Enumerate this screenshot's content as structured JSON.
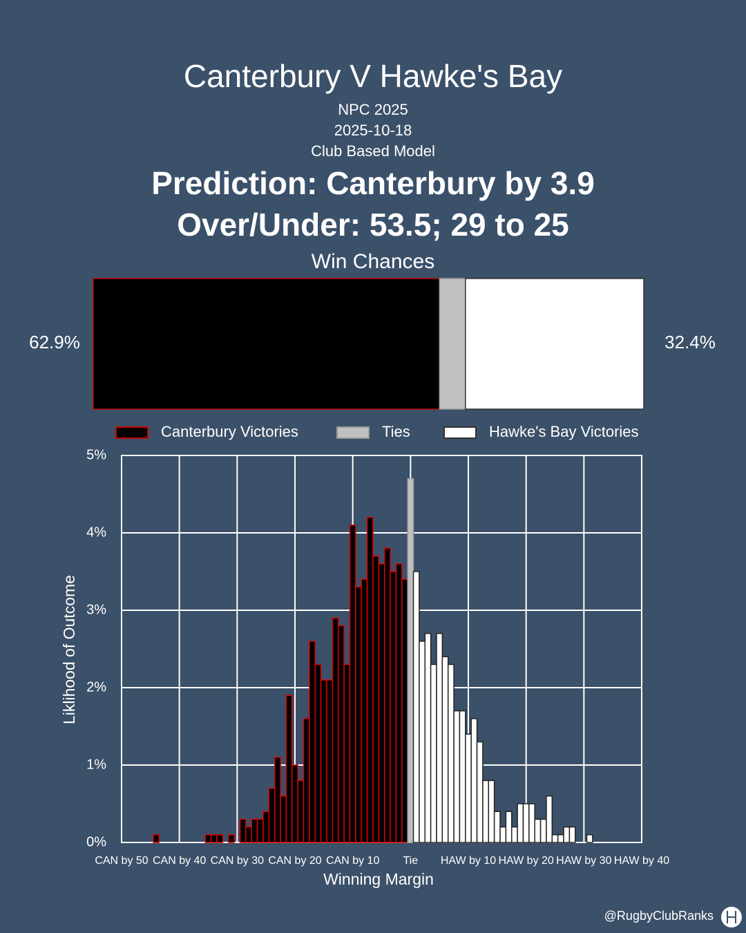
{
  "header": {
    "title": "Canterbury V Hawke's Bay",
    "lines": [
      "NPC 2025",
      "2025-10-18",
      "Club Based Model"
    ],
    "prediction": [
      "Prediction: Canterbury by 3.9",
      "Over/Under: 53.5; 29 to 25"
    ]
  },
  "chart_data": [
    {
      "type": "stacked-bar",
      "title": "Win Chances",
      "xlim": [
        0,
        100
      ],
      "series": [
        {
          "name": "Canterbury Victories",
          "color": "#000000",
          "edge": "#cc0000",
          "values": [
            62.9
          ],
          "value_labels": [
            "62.9%"
          ]
        },
        {
          "name": "Ties",
          "color": "#c0c0c0",
          "edge": "#9a9a9a",
          "values": [
            4.7
          ]
        },
        {
          "name": "Hawke's Bay Victories",
          "color": "#ffffff",
          "edge": "#333333",
          "values": [
            32.4
          ],
          "value_labels": [
            "32.4%"
          ]
        }
      ]
    },
    {
      "type": "histogram",
      "x_label": "Winning Margin",
      "y_label": "Liklihood of Outcome",
      "xlim": [
        -50,
        40
      ],
      "ylim": [
        0,
        5
      ],
      "grid": true,
      "xticks": [
        {
          "value": -50,
          "label": "CAN by 50"
        },
        {
          "value": -40,
          "label": "CAN by 40"
        },
        {
          "value": -30,
          "label": "CAN by 30"
        },
        {
          "value": -20,
          "label": "CAN by 20"
        },
        {
          "value": -10,
          "label": "CAN by 10"
        },
        {
          "value": 0,
          "label": "Tie"
        },
        {
          "value": 10,
          "label": "HAW by 10"
        },
        {
          "value": 20,
          "label": "HAW by 20"
        },
        {
          "value": 30,
          "label": "HAW by 30"
        },
        {
          "value": 40,
          "label": "HAW by 40"
        }
      ],
      "yticks": [
        {
          "value": 0,
          "label": "0%"
        },
        {
          "value": 1,
          "label": "1%"
        },
        {
          "value": 2,
          "label": "2%"
        },
        {
          "value": 3,
          "label": "3%"
        },
        {
          "value": 4,
          "label": "4%"
        },
        {
          "value": 5,
          "label": "5%"
        }
      ],
      "series": [
        {
          "color": "#000000",
          "edge": "#e00000",
          "x": [
            -44,
            -35,
            -34,
            -33,
            -31,
            -29,
            -28,
            -27,
            -26,
            -25,
            -24,
            -23,
            -22,
            -21,
            -20,
            -19,
            -18,
            -17,
            -16,
            -15,
            -14,
            -13,
            -12,
            -11,
            -10,
            -9,
            -8,
            -7,
            -6,
            -5,
            -4,
            -3,
            -2,
            -1
          ],
          "values": [
            0.1,
            0.1,
            0.1,
            0.1,
            0.1,
            0.3,
            0.2,
            0.3,
            0.3,
            0.4,
            0.7,
            1.1,
            0.6,
            1.9,
            1.0,
            0.8,
            1.6,
            2.6,
            2.3,
            2.1,
            2.1,
            2.9,
            2.8,
            2.3,
            4.1,
            3.3,
            3.4,
            4.2,
            3.7,
            3.6,
            3.8,
            3.5,
            3.6,
            3.4
          ]
        },
        {
          "color": "#c0c0c0",
          "edge": "#9a9a9a",
          "x": [
            0
          ],
          "values": [
            4.7
          ]
        },
        {
          "color": "#ffffff",
          "edge": "#222222",
          "x": [
            1,
            2,
            3,
            4,
            5,
            6,
            7,
            8,
            9,
            10,
            11,
            12,
            13,
            14,
            15,
            16,
            17,
            18,
            19,
            20,
            21,
            22,
            23,
            24,
            25,
            26,
            27,
            28,
            31
          ],
          "values": [
            3.5,
            2.6,
            2.7,
            2.3,
            2.7,
            2.4,
            2.3,
            1.7,
            1.7,
            1.4,
            1.6,
            1.3,
            0.8,
            0.8,
            0.4,
            0.2,
            0.4,
            0.2,
            0.5,
            0.5,
            0.5,
            0.3,
            0.3,
            0.6,
            0.1,
            0.1,
            0.2,
            0.2,
            0.1
          ]
        }
      ]
    }
  ],
  "footer": "@RugbyClubRanks"
}
